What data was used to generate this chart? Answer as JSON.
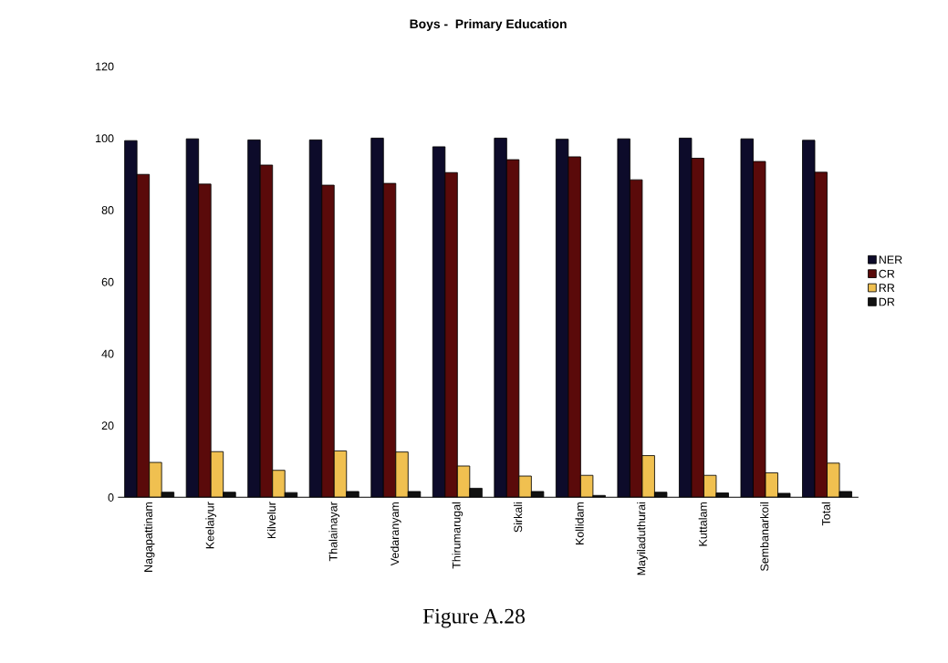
{
  "chart_data": {
    "type": "bar",
    "title": "Boys -  Primary Education",
    "categories": [
      "Nagapattinam",
      "Keelaiyur",
      "Kilvelur",
      "Thalainayar",
      "Vedaranyam",
      "Thirumarugal",
      "Sirkali",
      "Kollidam",
      "Mayiladuthurai",
      "Kuttalam",
      "Sembanarkoil",
      "Total"
    ],
    "series": [
      {
        "name": "NER",
        "color": "#0d0b2a",
        "values": [
          99.3,
          99.8,
          99.5,
          99.5,
          100,
          97.6,
          100,
          99.7,
          99.8,
          100,
          99.8,
          99.4
        ]
      },
      {
        "name": "CR",
        "color": "#5a0a0a",
        "values": [
          89.9,
          87.2,
          92.5,
          86.9,
          87.4,
          90.4,
          94.0,
          94.8,
          88.4,
          94.4,
          93.5,
          90.5
        ]
      },
      {
        "name": "RR",
        "color": "#f0c050",
        "values": [
          9.7,
          12.7,
          7.5,
          12.9,
          12.6,
          8.7,
          5.9,
          6.1,
          11.6,
          6.1,
          6.8,
          9.5
        ]
      },
      {
        "name": "DR",
        "color": "#111111",
        "values": [
          1.4,
          1.4,
          1.3,
          1.6,
          1.6,
          2.5,
          1.6,
          0.5,
          1.4,
          1.2,
          1.1,
          1.6
        ]
      }
    ],
    "ylim": [
      0,
      120
    ],
    "yticks": [
      0,
      20,
      40,
      60,
      80,
      100,
      120
    ],
    "legend": "right",
    "annotations": [
      "Figure A.28"
    ]
  }
}
